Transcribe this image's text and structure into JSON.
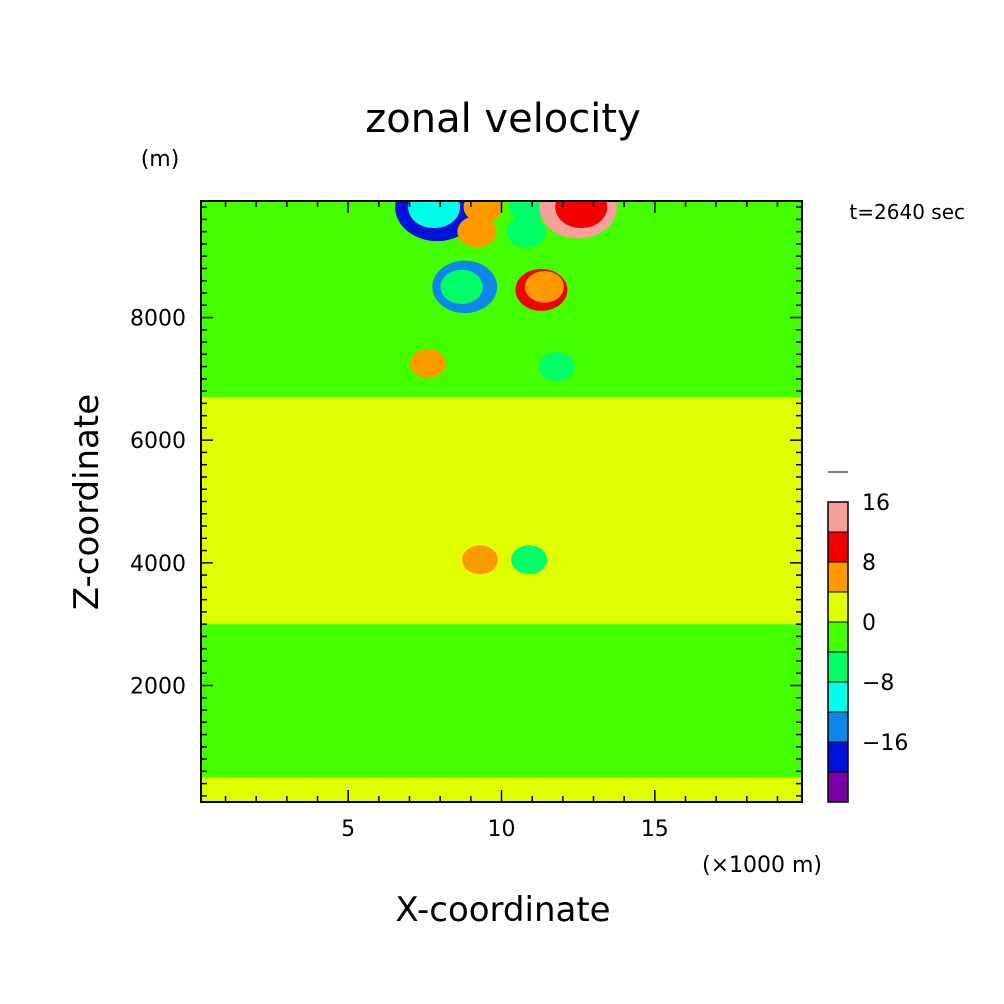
{
  "chart_data": {
    "type": "heatmap",
    "title": "zonal velocity",
    "xlabel": "X-coordinate",
    "ylabel": "Z-coordinate",
    "x_unit": "(×1000 m)",
    "y_unit": "(m)",
    "time_label": "t=2640 sec",
    "xlim": [
      0.2,
      19.8
    ],
    "ylim": [
      100,
      9900
    ],
    "x_ticks": [
      5,
      10,
      15
    ],
    "y_ticks": [
      2000,
      4000,
      6000,
      8000
    ],
    "x_tick_labels": [
      "5",
      "10",
      "15"
    ],
    "y_tick_labels": [
      "2000",
      "4000",
      "6000",
      "8000"
    ],
    "grid": false,
    "colorbar": {
      "position": "right",
      "levels": [
        -24,
        -20,
        -16,
        -12,
        -8,
        -4,
        0,
        4,
        8,
        12,
        16,
        20,
        24
      ],
      "colors": [
        "#7a00a8",
        "#0012d9",
        "#0f86e8",
        "#00ffea",
        "#00ff66",
        "#44ff00",
        "#e0ff00",
        "#ff9900",
        "#f20000",
        "#f5a09a"
      ],
      "tick_values": [
        -16,
        -8,
        0,
        8,
        16
      ],
      "tick_labels": [
        "−16",
        "−8",
        "0",
        "8",
        "16"
      ]
    },
    "base_regions": [
      {
        "desc": "upper band",
        "value": -2,
        "ylim": [
          6700,
          9900
        ]
      },
      {
        "desc": "mid band",
        "value": 2,
        "ylim": [
          3000,
          6700
        ]
      },
      {
        "desc": "low band",
        "value": -2,
        "ylim": [
          500,
          3000
        ]
      },
      {
        "desc": "bottom band",
        "value": 2,
        "ylim": [
          100,
          500
        ]
      }
    ],
    "anomalies": [
      {
        "x": 7.9,
        "z": 9800,
        "value": -20,
        "label": "dark-blue core"
      },
      {
        "x": 7.8,
        "z": 9800,
        "value": -10,
        "label": "cyan ring"
      },
      {
        "x": 9.4,
        "z": 9800,
        "value": 6,
        "label": "yellow patch"
      },
      {
        "x": 9.2,
        "z": 9400,
        "value": 6,
        "label": "yellow small"
      },
      {
        "x": 10.9,
        "z": 9800,
        "value": -6,
        "label": "cyan patch"
      },
      {
        "x": 10.8,
        "z": 9400,
        "value": -6,
        "label": "cyan small"
      },
      {
        "x": 12.5,
        "z": 9800,
        "value": 18,
        "label": "red core"
      },
      {
        "x": 12.6,
        "z": 9800,
        "value": 10,
        "label": "orange ring"
      },
      {
        "x": 8.8,
        "z": 8500,
        "value": -14,
        "label": "blue core"
      },
      {
        "x": 8.7,
        "z": 8500,
        "value": -7,
        "label": "cyan ring"
      },
      {
        "x": 11.3,
        "z": 8450,
        "value": 10,
        "label": "orange core"
      },
      {
        "x": 11.4,
        "z": 8500,
        "value": 6,
        "label": "yellow ring"
      },
      {
        "x": 7.6,
        "z": 7250,
        "value": 5,
        "label": "yellow lobe"
      },
      {
        "x": 11.8,
        "z": 7200,
        "value": -5,
        "label": "cyan lobe"
      },
      {
        "x": 9.3,
        "z": 4050,
        "value": 5,
        "label": "yellow spot"
      },
      {
        "x": 10.9,
        "z": 4050,
        "value": -5,
        "label": "cyan spot"
      }
    ]
  }
}
